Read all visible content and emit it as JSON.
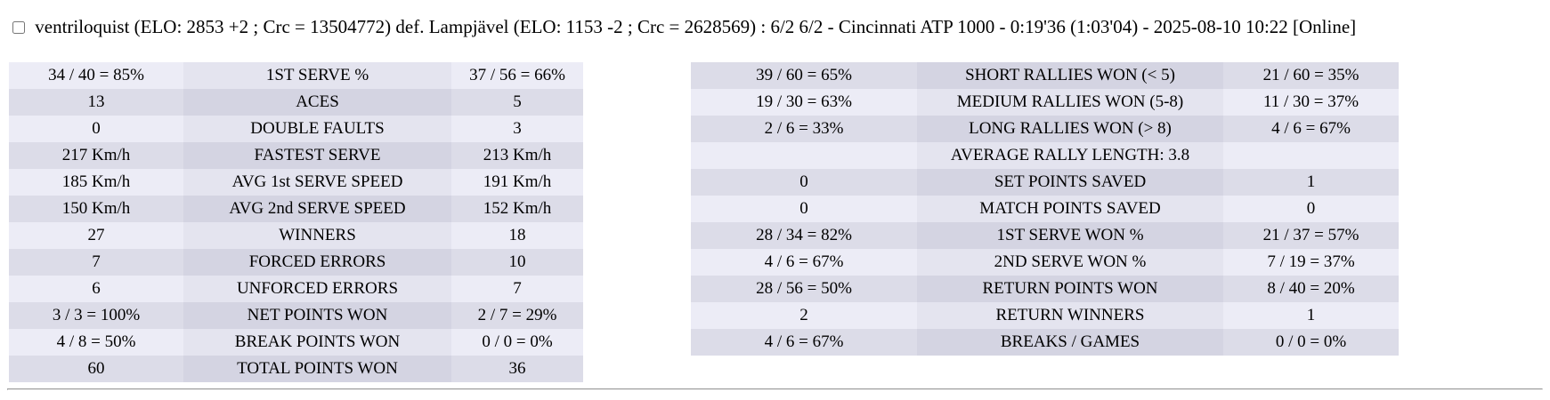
{
  "header": {
    "checkbox_checked": false,
    "text": "ventriloquist (ELO: 2853 +2 ; Crc = 13504772) def. Lampjävel (ELO: 1153 -2 ; Crc = 2628569) : 6/2 6/2 - Cincinnati ATP 1000 - 0:19'36 (1:03'04) - 2025-08-10 10:22 [Online]"
  },
  "left_table": {
    "rows": [
      {
        "p1": "34 / 40 = 85%",
        "label": "1ST SERVE %",
        "p2": "37 / 56 = 66%"
      },
      {
        "p1": "13",
        "label": "ACES",
        "p2": "5"
      },
      {
        "p1": "0",
        "label": "DOUBLE FAULTS",
        "p2": "3"
      },
      {
        "p1": "217 Km/h",
        "label": "FASTEST SERVE",
        "p2": "213 Km/h"
      },
      {
        "p1": "185 Km/h",
        "label": "AVG 1st SERVE SPEED",
        "p2": "191 Km/h"
      },
      {
        "p1": "150 Km/h",
        "label": "AVG 2nd SERVE SPEED",
        "p2": "152 Km/h"
      },
      {
        "p1": "27",
        "label": "WINNERS",
        "p2": "18"
      },
      {
        "p1": "7",
        "label": "FORCED ERRORS",
        "p2": "10"
      },
      {
        "p1": "6",
        "label": "UNFORCED ERRORS",
        "p2": "7"
      },
      {
        "p1": "3 / 3 = 100%",
        "label": "NET POINTS WON",
        "p2": "2 / 7 = 29%"
      },
      {
        "p1": "4 / 8 = 50%",
        "label": "BREAK POINTS WON",
        "p2": "0 / 0 = 0%"
      },
      {
        "p1": "60",
        "label": "TOTAL POINTS WON",
        "p2": "36"
      }
    ]
  },
  "right_table": {
    "rows": [
      {
        "p1": "39 / 60 = 65%",
        "label": "SHORT RALLIES WON (< 5)",
        "p2": "21 / 60 = 35%"
      },
      {
        "p1": "19 / 30 = 63%",
        "label": "MEDIUM RALLIES WON (5-8)",
        "p2": "11 / 30 = 37%"
      },
      {
        "p1": "2 / 6 = 33%",
        "label": "LONG RALLIES WON (> 8)",
        "p2": "4 / 6 = 67%"
      },
      {
        "p1": "",
        "label": "AVERAGE RALLY LENGTH: 3.8",
        "p2": ""
      },
      {
        "p1": "0",
        "label": "SET POINTS SAVED",
        "p2": "1"
      },
      {
        "p1": "0",
        "label": "MATCH POINTS SAVED",
        "p2": "0"
      },
      {
        "p1": "28 / 34 = 82%",
        "label": "1ST SERVE WON %",
        "p2": "21 / 37 = 57%"
      },
      {
        "p1": "4 / 6 = 67%",
        "label": "2ND SERVE WON %",
        "p2": "7 / 19 = 37%"
      },
      {
        "p1": "28 / 56 = 50%",
        "label": "RETURN POINTS WON",
        "p2": "8 / 40 = 20%"
      },
      {
        "p1": "2",
        "label": "RETURN WINNERS",
        "p2": "1"
      },
      {
        "p1": "4 / 6 = 67%",
        "label": "BREAKS / GAMES",
        "p2": "0 / 0 = 0%"
      }
    ]
  },
  "colors": {
    "pageBackground": "#FFFFFF",
    "textColor": "#000000",
    "rowLightValue": "#ECECF6",
    "rowLightLabel": "#E4E4EF",
    "rowDarkValue": "#DCDCE8",
    "rowDarkLabel": "#D4D4E2",
    "dividerColor": "#9A9A9A"
  }
}
